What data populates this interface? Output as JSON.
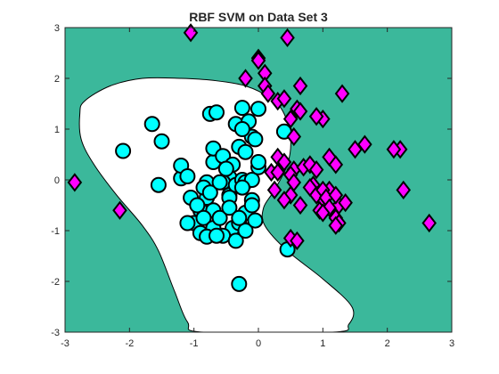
{
  "chart_data": {
    "type": "scatter",
    "title": "RBF SVM on Data Set 3",
    "xlabel": "",
    "ylabel": "",
    "xlim": [
      -3,
      3
    ],
    "ylim": [
      -3,
      3
    ],
    "xticks": [
      "-3",
      "-2",
      "-1",
      "0",
      "1",
      "2",
      "3"
    ],
    "yticks": [
      "-3",
      "-2",
      "-1",
      "0",
      "1",
      "2",
      "3"
    ],
    "grid": false,
    "legend": "none",
    "colors": {
      "background_region": "#3bb89b",
      "decision_region": "#ffffff",
      "class_circle": "#00ffff",
      "class_diamond": "#ff00ff",
      "marker_edge": "#000000"
    },
    "decision_boundary": [
      [
        -2.77,
        1.3
      ],
      [
        -2.7,
        1.55
      ],
      [
        -2.3,
        1.85
      ],
      [
        -1.8,
        2.0
      ],
      [
        -1.2,
        2.0
      ],
      [
        -0.7,
        1.96
      ],
      [
        -0.2,
        1.85
      ],
      [
        0.2,
        1.6
      ],
      [
        0.4,
        1.3
      ],
      [
        0.5,
        0.8
      ],
      [
        0.45,
        0.3
      ],
      [
        0.25,
        -0.2
      ],
      [
        0.08,
        -0.55
      ],
      [
        0.1,
        -0.9
      ],
      [
        0.45,
        -1.4
      ],
      [
        1.0,
        -1.95
      ],
      [
        1.45,
        -2.5
      ],
      [
        1.4,
        -2.85
      ],
      [
        1.15,
        -3.0
      ],
      [
        -0.85,
        -3.0
      ],
      [
        -1.1,
        -2.8
      ],
      [
        -1.3,
        -2.2
      ],
      [
        -1.55,
        -1.4
      ],
      [
        -1.8,
        -0.9
      ],
      [
        -2.2,
        -0.3
      ],
      [
        -2.55,
        0.3
      ],
      [
        -2.75,
        0.8
      ]
    ],
    "series": [
      {
        "marker": "circle",
        "x": [
          -1.65,
          -2.1,
          -1.5,
          -1.55,
          -1.2,
          -1.2,
          -1.1,
          -1.05,
          -0.8,
          -0.7,
          -0.7,
          -0.55,
          -0.75,
          -0.65,
          -0.45,
          -0.4,
          -0.3,
          -0.2,
          -0.35,
          -0.25,
          -0.15,
          0.0,
          -0.1,
          -0.05,
          0.4,
          -0.9,
          -1.0,
          -0.9,
          -0.7,
          -0.8,
          -0.55,
          -0.5,
          -0.45,
          -0.35,
          -0.25,
          -0.2,
          -0.1,
          0.0,
          -0.85,
          -0.75,
          -0.6,
          -0.45,
          -0.4,
          -0.3,
          -0.2,
          -0.1,
          -1.1,
          -0.95,
          -0.85,
          -0.7,
          -0.55,
          -0.35,
          -0.2,
          -0.05,
          -0.3,
          -0.6,
          -0.8,
          -0.65,
          -0.45,
          -0.3,
          -0.25,
          0.45,
          -0.1,
          0.0,
          -0.25
        ],
        "y": [
          1.1,
          0.57,
          0.76,
          -0.1,
          0.03,
          0.28,
          0.07,
          -0.35,
          -0.05,
          0.35,
          0.62,
          0.47,
          1.3,
          1.33,
          0.05,
          0.3,
          0.65,
          0.55,
          1.1,
          1.42,
          1.15,
          1.4,
          0.85,
          0.8,
          0.95,
          -0.6,
          -0.85,
          -1.05,
          -0.6,
          -0.35,
          -0.05,
          0.22,
          -0.3,
          -0.1,
          0.0,
          -0.05,
          0.0,
          0.25,
          -0.15,
          -0.25,
          -0.05,
          -0.35,
          -0.95,
          -0.85,
          -0.65,
          -0.4,
          -0.85,
          -0.5,
          -0.75,
          -0.95,
          -1.1,
          -1.2,
          -1.0,
          -0.8,
          -2.05,
          -0.75,
          -1.12,
          -1.1,
          -0.55,
          -0.75,
          -0.15,
          -1.37,
          -0.5,
          0.35,
          1.0
        ]
      },
      {
        "marker": "diamond",
        "x": [
          -1.05,
          0.45,
          0.0,
          -0.2,
          0.1,
          0.0,
          0.1,
          0.15,
          0.3,
          0.4,
          0.5,
          0.6,
          0.65,
          1.0,
          1.3,
          1.5,
          1.65,
          2.2,
          2.65,
          0.3,
          0.4,
          0.55,
          0.5,
          0.7,
          0.8,
          0.9,
          1.1,
          1.2,
          1.1,
          0.85,
          1.0,
          1.25,
          0.95,
          0.2,
          0.25,
          0.5,
          0.55,
          0.8,
          0.9,
          1.0,
          1.05,
          1.1,
          1.2,
          1.25,
          1.35,
          2.25,
          0.5,
          0.6,
          1.2,
          2.1,
          -2.85,
          -2.15,
          0.3,
          0.4,
          0.65,
          1.0,
          1.2,
          0.9,
          0.65,
          0.55
        ],
        "y": [
          2.9,
          2.8,
          2.4,
          2.0,
          2.1,
          2.35,
          1.85,
          1.7,
          1.55,
          1.6,
          1.2,
          1.4,
          1.85,
          1.2,
          1.7,
          0.6,
          0.7,
          0.6,
          -0.85,
          0.45,
          0.35,
          0.2,
          0.1,
          0.25,
          0.3,
          0.2,
          0.45,
          0.3,
          -0.2,
          -0.1,
          -0.4,
          -0.5,
          -0.6,
          0.15,
          -0.2,
          -0.3,
          -0.05,
          -0.15,
          -0.3,
          -0.2,
          -0.35,
          -0.55,
          -0.75,
          -0.85,
          -0.45,
          -0.2,
          -1.15,
          -1.2,
          -0.9,
          0.6,
          -0.05,
          -0.6,
          0.15,
          -0.4,
          -0.5,
          -0.65,
          -0.3,
          1.25,
          1.35,
          0.85
        ]
      }
    ]
  }
}
